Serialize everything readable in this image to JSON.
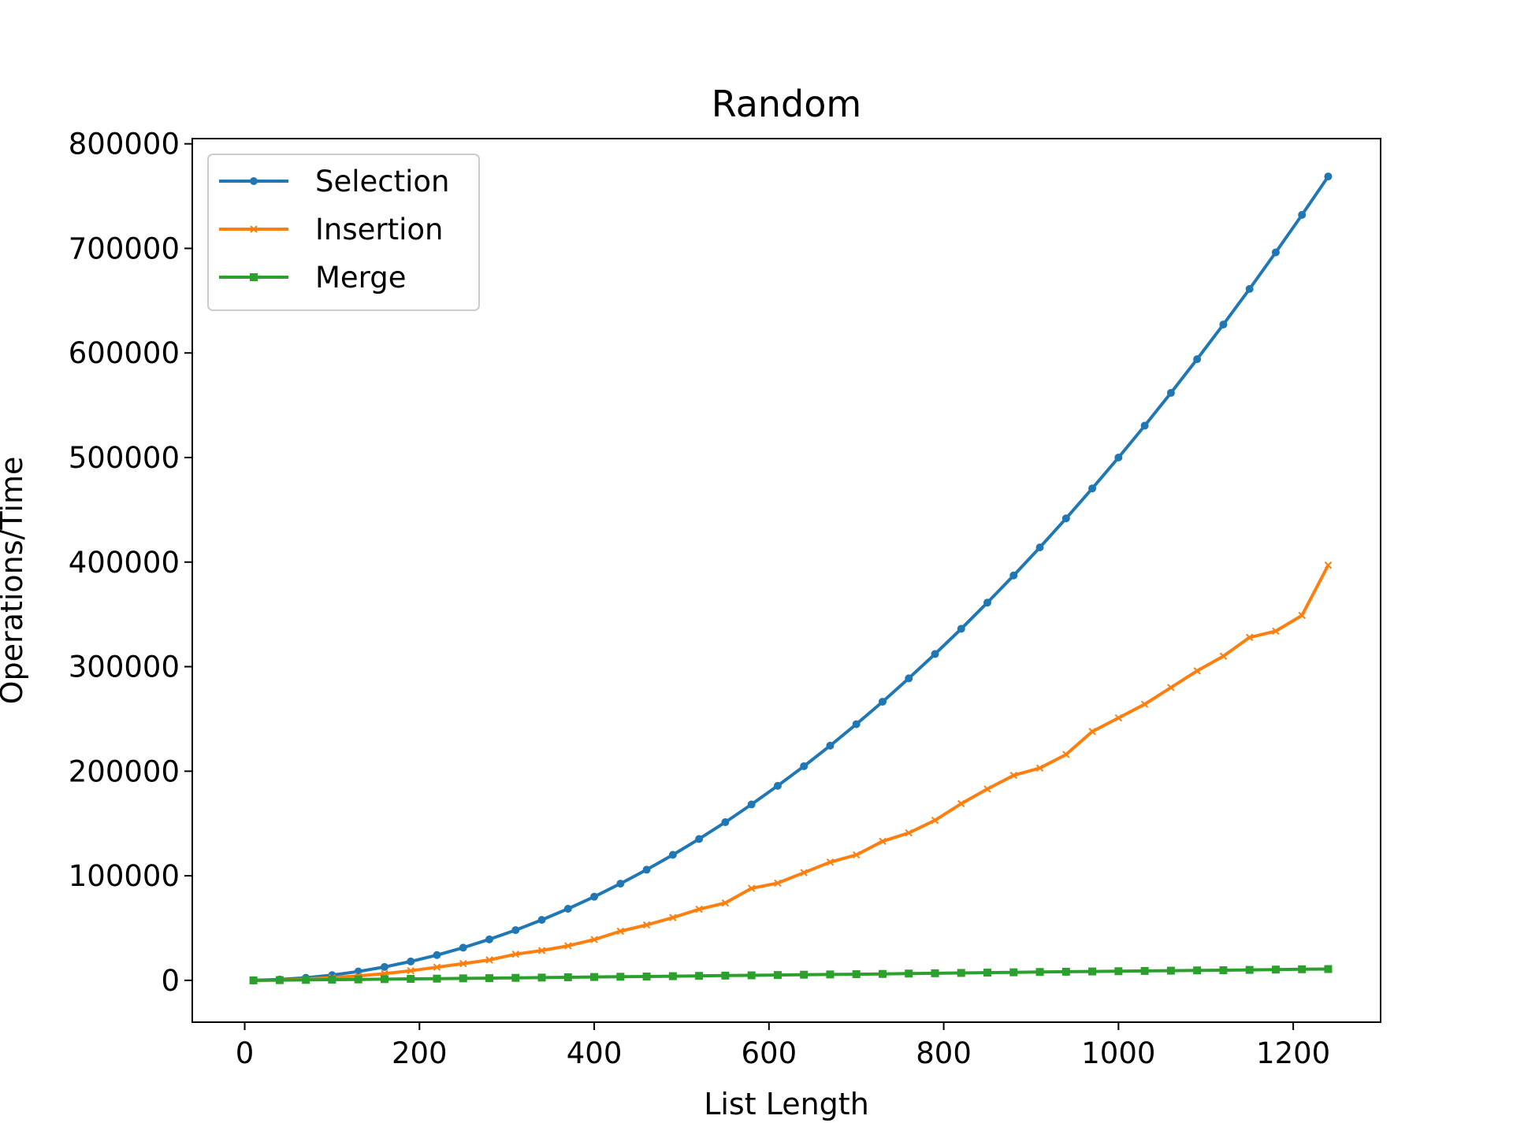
{
  "chart_data": {
    "type": "line",
    "title": "Random",
    "xlabel": "List Length",
    "ylabel": "Operations/Time",
    "xlim": [
      -60,
      1300
    ],
    "ylim": [
      -40000,
      805000
    ],
    "xticks": [
      0,
      200,
      400,
      600,
      800,
      1000,
      1200
    ],
    "yticks": [
      0,
      100000,
      200000,
      300000,
      400000,
      500000,
      600000,
      700000,
      800000
    ],
    "grid": false,
    "legend_position": "top-left",
    "series": [
      {
        "name": "Selection",
        "color": "#1f77b4",
        "marker": "circle",
        "x": [
          10,
          40,
          70,
          100,
          130,
          160,
          190,
          220,
          250,
          280,
          310,
          340,
          370,
          400,
          430,
          460,
          490,
          520,
          550,
          580,
          610,
          640,
          670,
          700,
          730,
          760,
          790,
          820,
          850,
          880,
          910,
          940,
          970,
          1000,
          1030,
          1060,
          1090,
          1120,
          1150,
          1180,
          1210,
          1240
        ],
        "y": [
          50,
          800,
          2450,
          5000,
          8450,
          12800,
          18050,
          24200,
          31250,
          39200,
          48050,
          57800,
          68450,
          80000,
          92450,
          105800,
          120050,
          135200,
          151250,
          168200,
          186050,
          204800,
          224450,
          245000,
          266450,
          288800,
          312050,
          336200,
          361250,
          387200,
          414050,
          441800,
          470450,
          500000,
          530450,
          561800,
          594050,
          627200,
          661250,
          696200,
          732050,
          768800
        ]
      },
      {
        "name": "Insertion",
        "color": "#ff7f0e",
        "marker": "x",
        "x": [
          10,
          40,
          70,
          100,
          130,
          160,
          190,
          220,
          250,
          280,
          310,
          340,
          370,
          400,
          430,
          460,
          490,
          520,
          550,
          580,
          610,
          640,
          670,
          700,
          730,
          760,
          790,
          820,
          850,
          880,
          910,
          940,
          970,
          1000,
          1030,
          1060,
          1090,
          1120,
          1150,
          1180,
          1210,
          1240
        ],
        "y": [
          0,
          300,
          1200,
          2600,
          4300,
          6400,
          9200,
          12600,
          16000,
          19500,
          25000,
          28500,
          33000,
          39000,
          47000,
          53000,
          60000,
          68000,
          74000,
          88000,
          93000,
          103000,
          113000,
          120000,
          133000,
          141000,
          153000,
          169000,
          183000,
          196000,
          203000,
          216000,
          238000,
          251000,
          264000,
          280000,
          296000,
          310000,
          328000,
          334000,
          349000,
          397000
        ]
      },
      {
        "name": "Merge",
        "color": "#2ca02c",
        "marker": "square",
        "x": [
          10,
          40,
          70,
          100,
          130,
          160,
          190,
          220,
          250,
          280,
          310,
          340,
          370,
          400,
          430,
          460,
          490,
          520,
          550,
          580,
          610,
          640,
          670,
          700,
          730,
          760,
          790,
          820,
          850,
          880,
          910,
          940,
          970,
          1000,
          1030,
          1060,
          1090,
          1120,
          1150,
          1180,
          1210,
          1240
        ],
        "y": [
          0,
          200,
          450,
          700,
          900,
          1150,
          1400,
          1650,
          1900,
          2100,
          2400,
          2650,
          2950,
          3200,
          3450,
          3700,
          4000,
          4300,
          4550,
          4800,
          5100,
          5400,
          5650,
          5900,
          6150,
          6500,
          6800,
          7100,
          7400,
          7700,
          8000,
          8250,
          8500,
          8750,
          9000,
          9250,
          9500,
          9700,
          10000,
          10300,
          10600,
          10800
        ]
      }
    ]
  }
}
